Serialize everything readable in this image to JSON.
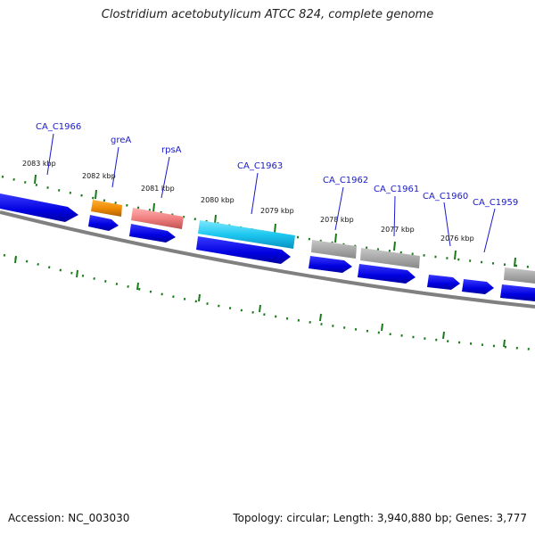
{
  "title": "Clostridium acetobutylicum ATCC 824, complete genome",
  "footer": {
    "accession": "Accession: NC_003030",
    "summary": "Topology: circular; Length: 3,940,880 bp; Genes: 3,777"
  },
  "kbp_labels": [
    "2083 kbp",
    "2082 kbp",
    "2081 kbp",
    "2080 kbp",
    "2079 kbp",
    "2078 kbp",
    "2077 kbp",
    "2076 kbp"
  ],
  "gene_labels": [
    "CA_C1966",
    "greA",
    "rpsA",
    "CA_C1963",
    "CA_C1962",
    "CA_C1961",
    "CA_C1960",
    "CA_C1959"
  ],
  "colors": {
    "cds": "#0000ee",
    "grey_feature": "#a8a8a8",
    "greA": "#f08c00",
    "rpsA": "#f08080",
    "CA_C1963": "#1ec8f0",
    "tick": "#1a7a1a",
    "backbone": "#808080",
    "label": "#1a1acc"
  }
}
